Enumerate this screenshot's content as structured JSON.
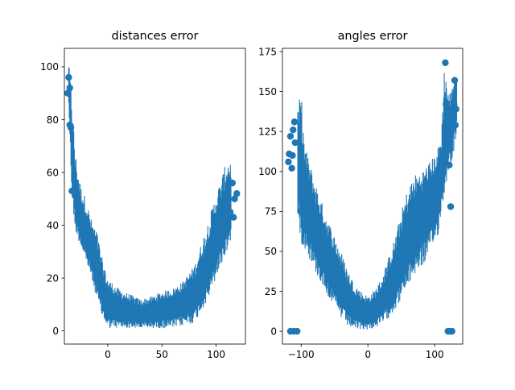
{
  "chart_data": [
    {
      "type": "errorbar-scatter",
      "title": "distances error",
      "xlim": [
        -40,
        127
      ],
      "ylim": [
        -5,
        107
      ],
      "xticks": [
        0,
        50,
        100
      ],
      "xtick_labels": [
        "0",
        "50",
        "100"
      ],
      "yticks": [
        0,
        20,
        40,
        60,
        80,
        100
      ],
      "ytick_labels": [
        "0",
        "20",
        "40",
        "60",
        "80",
        "100"
      ],
      "color": "#1f77b4",
      "points": [
        {
          "x": -37,
          "y": 90
        },
        {
          "x": -36,
          "y": 96
        },
        {
          "x": -35,
          "y": 92
        },
        {
          "x": -35,
          "y": 78
        },
        {
          "x": -34,
          "y": 77
        },
        {
          "x": -33,
          "y": 53
        },
        {
          "x": 113,
          "y": 45
        },
        {
          "x": 115,
          "y": 56
        },
        {
          "x": 117,
          "y": 50
        },
        {
          "x": 119,
          "y": 52
        },
        {
          "x": 111,
          "y": 48
        },
        {
          "x": 116,
          "y": 43
        }
      ],
      "error_envelope": [
        {
          "x": -36,
          "center": 95,
          "lower": 85,
          "upper": 102
        },
        {
          "x": -33,
          "center": 65,
          "lower": 50,
          "upper": 88
        },
        {
          "x": -30,
          "center": 50,
          "lower": 38,
          "upper": 68
        },
        {
          "x": -25,
          "center": 42,
          "lower": 32,
          "upper": 55
        },
        {
          "x": -20,
          "center": 36,
          "lower": 26,
          "upper": 50
        },
        {
          "x": -15,
          "center": 30,
          "lower": 20,
          "upper": 42
        },
        {
          "x": -10,
          "center": 22,
          "lower": 12,
          "upper": 38
        },
        {
          "x": -5,
          "center": 15,
          "lower": 5,
          "upper": 27
        },
        {
          "x": 0,
          "center": 10,
          "lower": 1,
          "upper": 20
        },
        {
          "x": 10,
          "center": 8,
          "lower": 1,
          "upper": 16
        },
        {
          "x": 20,
          "center": 7,
          "lower": 1,
          "upper": 14
        },
        {
          "x": 30,
          "center": 6,
          "lower": 1,
          "upper": 12
        },
        {
          "x": 40,
          "center": 7,
          "lower": 1,
          "upper": 13
        },
        {
          "x": 50,
          "center": 8,
          "lower": 1,
          "upper": 15
        },
        {
          "x": 60,
          "center": 9,
          "lower": 1,
          "upper": 16
        },
        {
          "x": 70,
          "center": 11,
          "lower": 2,
          "upper": 19
        },
        {
          "x": 80,
          "center": 14,
          "lower": 3,
          "upper": 25
        },
        {
          "x": 90,
          "center": 22,
          "lower": 10,
          "upper": 38
        },
        {
          "x": 95,
          "center": 28,
          "lower": 14,
          "upper": 45
        },
        {
          "x": 100,
          "center": 35,
          "lower": 20,
          "upper": 52
        },
        {
          "x": 105,
          "center": 40,
          "lower": 25,
          "upper": 58
        },
        {
          "x": 110,
          "center": 45,
          "lower": 30,
          "upper": 65
        },
        {
          "x": 114,
          "center": 48,
          "lower": 35,
          "upper": 65
        }
      ]
    },
    {
      "type": "errorbar-scatter",
      "title": "angles error",
      "xlim": [
        -128,
        142
      ],
      "ylim": [
        -8,
        177
      ],
      "xticks": [
        -100,
        0,
        100
      ],
      "xtick_labels": [
        "−100",
        "0",
        "100"
      ],
      "yticks": [
        0,
        25,
        50,
        75,
        100,
        125,
        150,
        175
      ],
      "ytick_labels": [
        "0",
        "25",
        "50",
        "75",
        "100",
        "125",
        "150",
        "175"
      ],
      "color": "#1f77b4",
      "points": [
        {
          "x": -119,
          "y": 106
        },
        {
          "x": -118,
          "y": 111
        },
        {
          "x": -116,
          "y": 122
        },
        {
          "x": -114,
          "y": 102
        },
        {
          "x": -113,
          "y": 110
        },
        {
          "x": -112,
          "y": 126
        },
        {
          "x": -110,
          "y": 131
        },
        {
          "x": -109,
          "y": 118
        },
        {
          "x": -116,
          "y": 0
        },
        {
          "x": -111,
          "y": 0
        },
        {
          "x": -106,
          "y": 0
        },
        {
          "x": -101,
          "y": 75
        },
        {
          "x": 72,
          "y": 50
        },
        {
          "x": 110,
          "y": 104
        },
        {
          "x": 113,
          "y": 107
        },
        {
          "x": 116,
          "y": 168
        },
        {
          "x": 117,
          "y": 142
        },
        {
          "x": 118,
          "y": 135
        },
        {
          "x": 119,
          "y": 123
        },
        {
          "x": 120,
          "y": 115
        },
        {
          "x": 122,
          "y": 104
        },
        {
          "x": 124,
          "y": 78
        },
        {
          "x": 125,
          "y": 125
        },
        {
          "x": 127,
          "y": 137
        },
        {
          "x": 129,
          "y": 142
        },
        {
          "x": 130,
          "y": 157
        },
        {
          "x": 131,
          "y": 129
        },
        {
          "x": 132,
          "y": 139
        },
        {
          "x": 120,
          "y": 0
        },
        {
          "x": 123,
          "y": 0
        },
        {
          "x": 126,
          "y": 0
        }
      ],
      "error_envelope": [
        {
          "x": -105,
          "center": 105,
          "lower": 70,
          "upper": 140
        },
        {
          "x": -100,
          "center": 95,
          "lower": 55,
          "upper": 150
        },
        {
          "x": -95,
          "center": 85,
          "lower": 52,
          "upper": 118
        },
        {
          "x": -90,
          "center": 78,
          "lower": 48,
          "upper": 110
        },
        {
          "x": -80,
          "center": 65,
          "lower": 38,
          "upper": 95
        },
        {
          "x": -70,
          "center": 55,
          "lower": 30,
          "upper": 82
        },
        {
          "x": -60,
          "center": 45,
          "lower": 22,
          "upper": 70
        },
        {
          "x": -50,
          "center": 35,
          "lower": 15,
          "upper": 60
        },
        {
          "x": -40,
          "center": 27,
          "lower": 8,
          "upper": 50
        },
        {
          "x": -30,
          "center": 20,
          "lower": 3,
          "upper": 38
        },
        {
          "x": -20,
          "center": 15,
          "lower": 1,
          "upper": 30
        },
        {
          "x": -10,
          "center": 12,
          "lower": 1,
          "upper": 25
        },
        {
          "x": 0,
          "center": 11,
          "lower": 1,
          "upper": 22
        },
        {
          "x": 10,
          "center": 13,
          "lower": 2,
          "upper": 26
        },
        {
          "x": 20,
          "center": 18,
          "lower": 4,
          "upper": 33
        },
        {
          "x": 30,
          "center": 25,
          "lower": 8,
          "upper": 45
        },
        {
          "x": 40,
          "center": 33,
          "lower": 13,
          "upper": 58
        },
        {
          "x": 50,
          "center": 43,
          "lower": 20,
          "upper": 75
        },
        {
          "x": 60,
          "center": 55,
          "lower": 28,
          "upper": 90
        },
        {
          "x": 70,
          "center": 65,
          "lower": 35,
          "upper": 98
        },
        {
          "x": 80,
          "center": 72,
          "lower": 40,
          "upper": 100
        },
        {
          "x": 90,
          "center": 78,
          "lower": 45,
          "upper": 105
        },
        {
          "x": 100,
          "center": 84,
          "lower": 55,
          "upper": 110
        },
        {
          "x": 105,
          "center": 88,
          "lower": 60,
          "upper": 115
        },
        {
          "x": 110,
          "center": 95,
          "lower": 75,
          "upper": 125
        },
        {
          "x": 115,
          "center": 120,
          "lower": 85,
          "upper": 170
        },
        {
          "x": 120,
          "center": 125,
          "lower": 100,
          "upper": 150
        },
        {
          "x": 125,
          "center": 130,
          "lower": 105,
          "upper": 150
        },
        {
          "x": 130,
          "center": 140,
          "lower": 115,
          "upper": 165
        },
        {
          "x": 133,
          "center": 140,
          "lower": 125,
          "upper": 160
        }
      ]
    }
  ]
}
